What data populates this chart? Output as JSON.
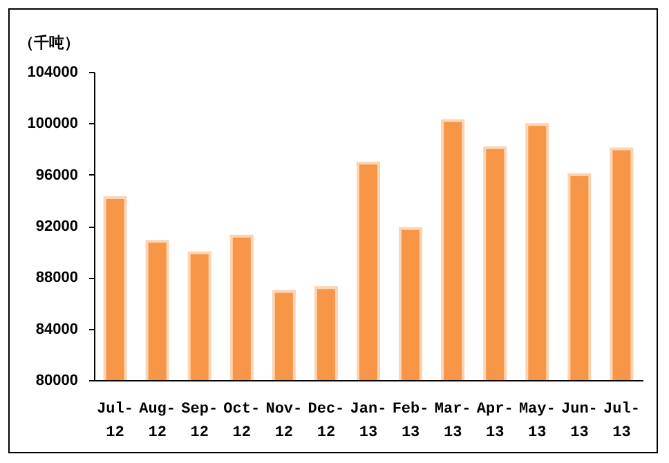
{
  "chart_data": {
    "type": "bar",
    "ylabel": "（千吨）",
    "categories": [
      "Jul-\n12",
      "Aug-\n12",
      "Sep-\n12",
      "Oct-\n12",
      "Nov-\n12",
      "Dec-\n12",
      "Jan-\n13",
      "Feb-\n13",
      "Mar-\n13",
      "Apr-\n13",
      "May-\n13",
      "Jun-\n13",
      "Jul-\n13"
    ],
    "values": [
      94200,
      90800,
      89900,
      91200,
      86900,
      87200,
      96900,
      91800,
      100200,
      98100,
      99900,
      96000,
      98000
    ],
    "color": "#f79646",
    "ylim": [
      80000,
      104000
    ],
    "yticks": [
      80000,
      84000,
      88000,
      92000,
      96000,
      100000,
      104000
    ],
    "grid": false,
    "legend": false
  }
}
